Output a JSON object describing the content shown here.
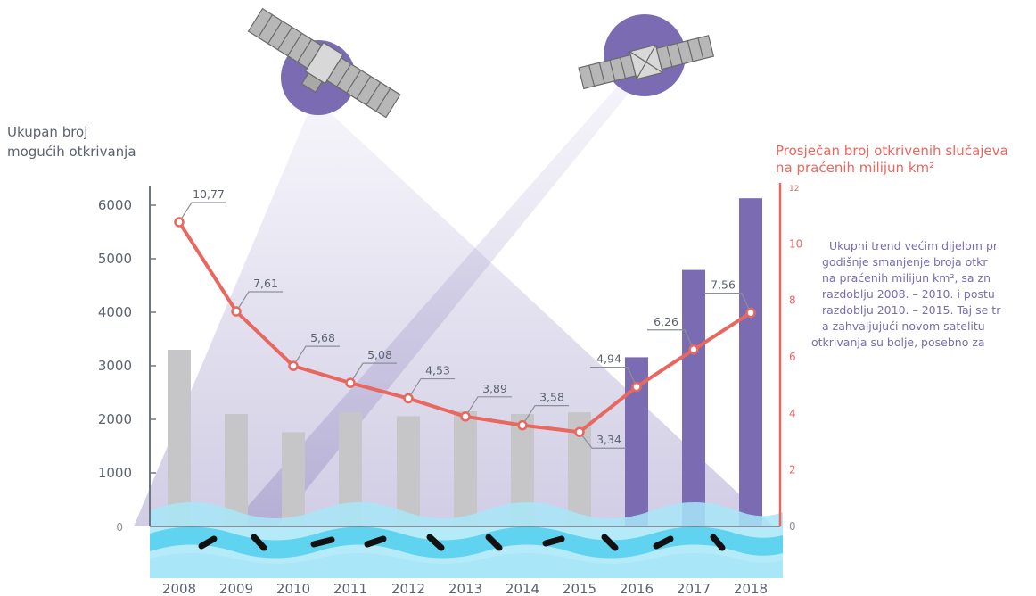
{
  "chart_data": {
    "type": "bar+line",
    "categories": [
      "2008",
      "2009",
      "2010",
      "2011",
      "2012",
      "2013",
      "2014",
      "2015",
      "2016",
      "2017",
      "2018"
    ],
    "bars": {
      "values": [
        3300,
        2100,
        1760,
        2130,
        2060,
        2150,
        2100,
        2130,
        3160,
        4790,
        6130
      ],
      "colors": [
        "#c6c6c8",
        "#c6c6c8",
        "#c6c6c8",
        "#c6c6c8",
        "#c6c6c8",
        "#c6c6c8",
        "#c6c6c8",
        "#c6c6c8",
        "#7b6bb2",
        "#7b6bb2",
        "#7b6bb2"
      ]
    },
    "line": {
      "values": [
        10.77,
        7.61,
        5.68,
        5.08,
        4.53,
        3.89,
        3.58,
        3.34,
        4.94,
        6.26,
        7.56
      ],
      "labels": [
        "10,77",
        "7,61",
        "5,68",
        "5,08",
        "4,53",
        "3,89",
        "3,58",
        "3,34",
        "4,94",
        "6,26",
        "7,56"
      ],
      "color": "#e8675f"
    },
    "left_axis": {
      "title_line1": "Ukupan broj",
      "title_line2": "mogućih otkrivanja",
      "ticks": [
        "0",
        "1000",
        "2000",
        "3000",
        "4000",
        "5000",
        "6000"
      ],
      "range": [
        0,
        6500
      ]
    },
    "right_axis": {
      "title_line1": "Prosječan broj otkrivenih slučajeva",
      "title_line2": "na praćenih milijun km²",
      "ticks": [
        "0",
        "2",
        "4",
        "6",
        "8",
        "10",
        "12"
      ],
      "range": [
        0,
        12
      ],
      "color": "#e8675f"
    },
    "annotation": [
      "Ukupni trend većim dijelom pr",
      "godišnje smanjenje broja otkr",
      "na praćenih milijun km², sa zn",
      "razdoblju 2008. – 2010. i postu",
      "razdoblju 2010. – 2015. Taj se tr",
      "a zahvaljujući novom satelitu",
      "otkrivanja su bolje, posebno za"
    ]
  },
  "colors": {
    "axis_gray": "#6f7580",
    "text_gray": "#5b6370",
    "purple_dark": "#7b6bb2",
    "water_light": "#a8e6f8",
    "water_mid": "#5fd3f0"
  }
}
